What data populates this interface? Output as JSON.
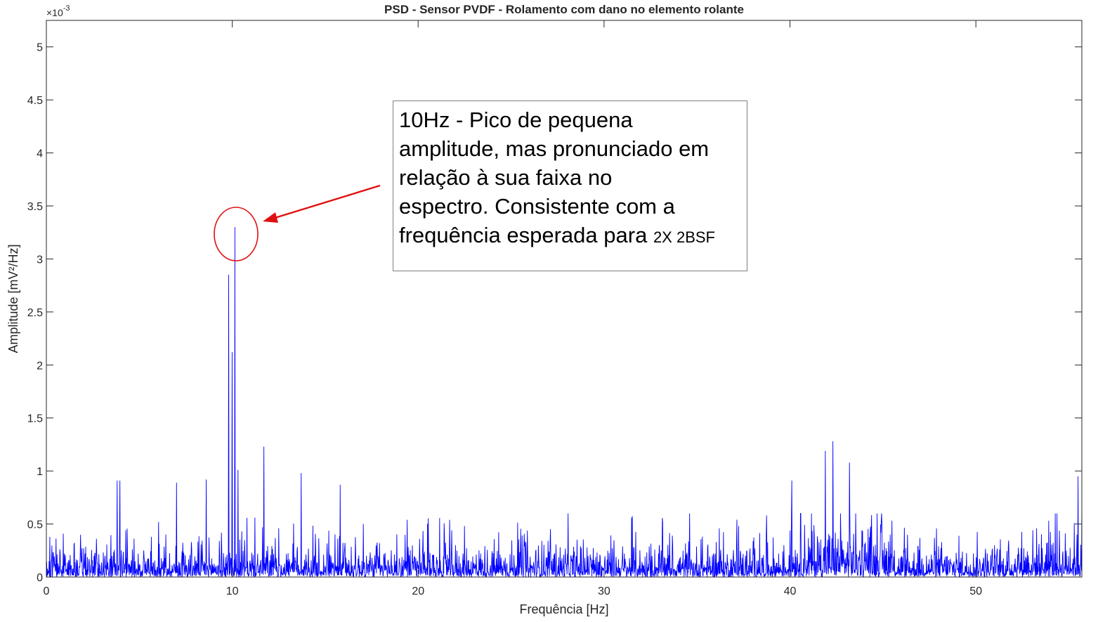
{
  "chart_data": {
    "type": "line",
    "title": "PSD - Sensor PVDF - Rolamento com dano no elemento rolante",
    "xlabel": "Frequência [Hz]",
    "ylabel": "Amplitude [mV²/Hz]",
    "y_exponent_label": "×10",
    "y_exponent_power": "-3",
    "xlim": [
      0,
      55.7
    ],
    "ylim": [
      0,
      5.25
    ],
    "x_ticks": [
      0,
      10,
      20,
      30,
      40,
      50
    ],
    "x_tick_labels": [
      "0",
      "10",
      "20",
      "30",
      "40",
      "50"
    ],
    "y_ticks": [
      0,
      0.5,
      1,
      1.5,
      2,
      2.5,
      3,
      3.5,
      4,
      4.5,
      5
    ],
    "y_tick_labels": [
      "0",
      "0.5",
      "1",
      "1.5",
      "2",
      "2.5",
      "3",
      "3.5",
      "4",
      "4.5",
      "5"
    ],
    "grid": false,
    "line_color": "#0000ff",
    "peaks": [
      {
        "x": 3.8,
        "y": 0.91
      },
      {
        "x": 3.95,
        "y": 0.91
      },
      {
        "x": 7.0,
        "y": 0.89
      },
      {
        "x": 8.6,
        "y": 0.92
      },
      {
        "x": 9.8,
        "y": 2.85
      },
      {
        "x": 10.0,
        "y": 2.12
      },
      {
        "x": 10.15,
        "y": 3.3
      },
      {
        "x": 10.3,
        "y": 1.01
      },
      {
        "x": 11.7,
        "y": 1.23
      },
      {
        "x": 13.7,
        "y": 0.98
      },
      {
        "x": 15.8,
        "y": 0.87
      },
      {
        "x": 40.1,
        "y": 0.91
      },
      {
        "x": 41.9,
        "y": 1.19
      },
      {
        "x": 42.3,
        "y": 1.28
      },
      {
        "x": 43.2,
        "y": 1.08
      },
      {
        "x": 55.5,
        "y": 0.95
      },
      {
        "x": 55.7,
        "y": 0.69
      }
    ],
    "noise_floor_typical": 0.12,
    "noise_floor_max": 0.6
  },
  "annotation": {
    "lines": [
      "10Hz - Pico de pequena",
      "amplitude, mas pronunciado em",
      "relação à sua faixa no",
      "espectro. Consistente com a"
    ],
    "last_line": "frequência esperada para",
    "last_line_suffix": "2X 2BSF",
    "highlight_color": "#e01010"
  }
}
